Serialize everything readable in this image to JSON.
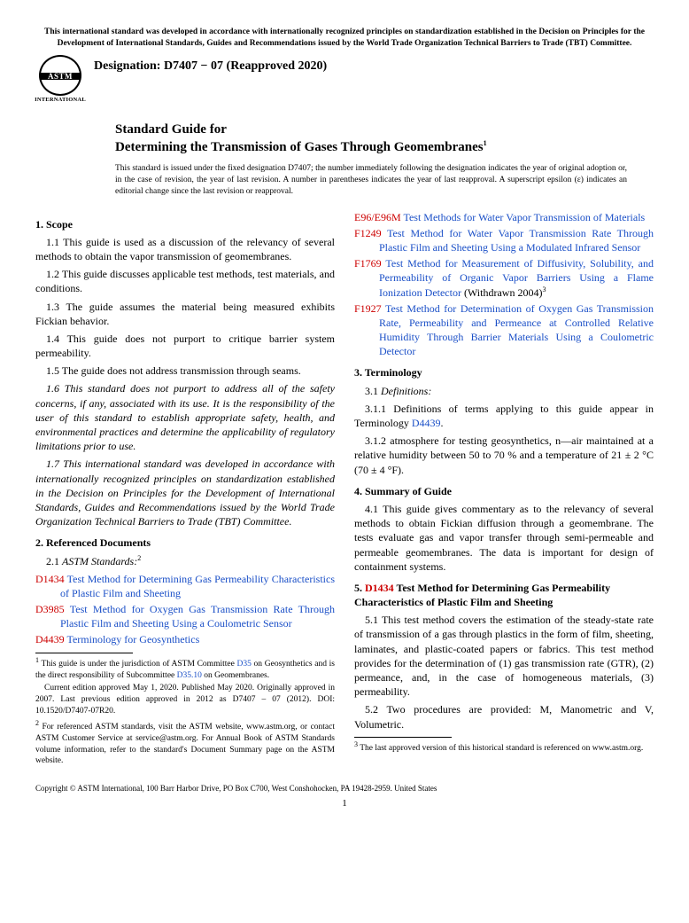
{
  "top_notice": "This international standard was developed in accordance with internationally recognized principles on standardization established in the Decision on Principles for the Development of International Standards, Guides and Recommendations issued by the World Trade Organization Technical Barriers to Trade (TBT) Committee.",
  "logo": {
    "main": "ASTM",
    "sub": "INTERNATIONAL"
  },
  "designation": "Designation: D7407 − 07 (Reapproved 2020)",
  "title": {
    "lead": "Standard Guide for",
    "main": "Determining the Transmission of Gases Through Geomembranes",
    "sup": "1"
  },
  "issued_note": "This standard is issued under the fixed designation D7407; the number immediately following the designation indicates the year of original adoption or, in the case of revision, the year of last revision. A number in parentheses indicates the year of last reapproval. A superscript epsilon (ε) indicates an editorial change since the last revision or reapproval.",
  "scope": {
    "head": "1. Scope",
    "p1": "1.1 This guide is used as a discussion of the relevancy of several methods to obtain the vapor transmission of geomembranes.",
    "p2": "1.2 This guide discusses applicable test methods, test materials, and conditions.",
    "p3": "1.3 The guide assumes the material being measured exhibits Fickian behavior.",
    "p4": "1.4 This guide does not purport to critique barrier system permeability.",
    "p5": "1.5 The guide does not address transmission through seams.",
    "p6": "1.6 This standard does not purport to address all of the safety concerns, if any, associated with its use. It is the responsibility of the user of this standard to establish appropriate safety, health, and environmental practices and determine the applicability of regulatory limitations prior to use.",
    "p7": "1.7 This international standard was developed in accordance with internationally recognized principles on standardization established in the Decision on Principles for the Development of International Standards, Guides and Recommendations issued by the World Trade Organization Technical Barriers to Trade (TBT) Committee."
  },
  "refdocs": {
    "head": "2. Referenced Documents",
    "sub": "ASTM Standards:",
    "subnum": "2.1 ",
    "supnum": "2",
    "items": [
      {
        "code": "D1434",
        "title": "Test Method for Determining Gas Permeability Characteristics of Plastic Film and Sheeting"
      },
      {
        "code": "D3985",
        "title": "Test Method for Oxygen Gas Transmission Rate Through Plastic Film and Sheeting Using a Coulometric Sensor"
      },
      {
        "code": "D4439",
        "title": "Terminology for Geosynthetics"
      },
      {
        "code": "E96/E96M",
        "title": "Test Methods for Water Vapor Transmission of Materials"
      },
      {
        "code": "F1249",
        "title": "Test Method for Water Vapor Transmission Rate Through Plastic Film and Sheeting Using a Modulated Infrared Sensor"
      },
      {
        "code": "F1769",
        "title": "Test Method for Measurement of Diffusivity, Solubility, and Permeability of Organic Vapor Barriers Using a Flame Ionization Detector",
        "tail": " (Withdrawn 2004)",
        "sup": "3"
      },
      {
        "code": "F1927",
        "title": "Test Method for Determination of Oxygen Gas Transmission Rate, Permeability and Permeance at Controlled Relative Humidity Through Barrier Materials Using a Coulometric Detector"
      }
    ]
  },
  "terminology": {
    "head": "3. Terminology",
    "sub": "Definitions:",
    "subnum": "3.1 ",
    "p1a": "3.1.1 Definitions of terms applying to this guide appear in Terminology ",
    "p1b": "D4439",
    "p1c": ".",
    "p2": "3.1.2 atmosphere for testing geosynthetics, n—air maintained at a relative humidity between 50 to 70 % and a temperature of 21 ± 2 °C (70 ± 4 °F)."
  },
  "summary": {
    "head": "4. Summary of Guide",
    "p1": "4.1 This guide gives commentary as to the relevancy of several methods to obtain Fickian diffusion through a geomembrane. The tests evaluate gas and vapor transfer through semi-permeable and permeable geomembranes. The data is important for design of containment systems."
  },
  "section5": {
    "num": "5. ",
    "code": "D1434",
    "rest": " Test Method for Determining Gas Permeability Characteristics of Plastic Film and Sheeting",
    "p1": "5.1 This test method covers the estimation of the steady-state rate of transmission of a gas through plastics in the form of film, sheeting, laminates, and plastic-coated papers or fabrics. This test method provides for the determination of (1) gas transmission rate (GTR), (2) permeance, and, in the case of homogeneous materials, (3) permeability.",
    "p2": "5.2 Two procedures are provided: M, Manometric and V, Volumetric."
  },
  "footnotes": {
    "f1a": "This guide is under the jurisdiction of ASTM Committee ",
    "f1b": "D35",
    "f1c": " on Geosynthetics and is the direct responsibility of Subcommittee ",
    "f1d": "D35.10",
    "f1e": " on Geomembranes.",
    "f1f": "Current edition approved May 1, 2020. Published May 2020. Originally approved in 2007. Last previous edition approved in 2012 as D7407 – 07 (2012). DOI: 10.1520/D7407-07R20.",
    "f2": "For referenced ASTM standards, visit the ASTM website, www.astm.org, or contact ASTM Customer Service at service@astm.org. For Annual Book of ASTM Standards volume information, refer to the standard's Document Summary page on the ASTM website.",
    "f3": "The last approved version of this historical standard is referenced on www.astm.org."
  },
  "copyright": "Copyright © ASTM International, 100 Barr Harbor Drive, PO Box C700, West Conshohocken, PA 19428-2959. United States",
  "page_num": "1"
}
